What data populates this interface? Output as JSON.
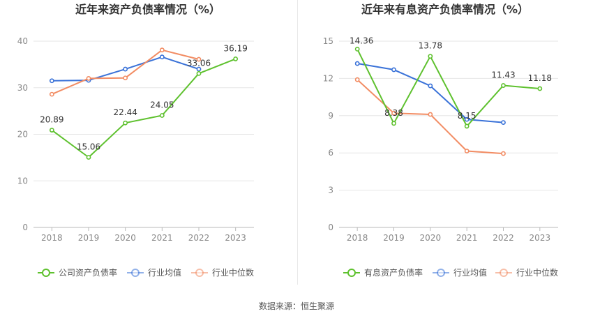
{
  "source_label": "数据来源：恒生聚源",
  "colors": {
    "company": "#5ec12e",
    "industry_avg": "#3a72d8",
    "industry_median": "#f28c63",
    "grid": "#e6e6e6",
    "axis_text": "#888888",
    "title": "#333333"
  },
  "chart_data": [
    {
      "type": "line",
      "title": "近年来资产负债率情况（%）",
      "categories": [
        "2018",
        "2019",
        "2020",
        "2021",
        "2022",
        "2023"
      ],
      "ylim": [
        0,
        40
      ],
      "yticks": [
        0,
        10,
        20,
        30,
        40
      ],
      "grid": true,
      "legend_position": "bottom",
      "series": [
        {
          "name": "公司资产负债率",
          "color_key": "company",
          "values": [
            20.89,
            15.06,
            22.44,
            24.05,
            33.06,
            36.19
          ],
          "labels": [
            "20.89",
            "15.06",
            "22.44",
            "24.05",
            "33.06",
            "36.19"
          ]
        },
        {
          "name": "行业均值",
          "color_key": "industry_avg",
          "values": [
            31.5,
            31.6,
            34.0,
            36.6,
            34.0,
            null
          ]
        },
        {
          "name": "行业中位数",
          "color_key": "industry_median",
          "values": [
            28.6,
            32.0,
            32.1,
            38.1,
            36.1,
            null
          ]
        }
      ]
    },
    {
      "type": "line",
      "title": "近年来有息资产负债率情况（%）",
      "categories": [
        "2018",
        "2019",
        "2020",
        "2021",
        "2022",
        "2023"
      ],
      "ylim": [
        0,
        15
      ],
      "yticks": [
        0,
        3,
        6,
        9,
        12,
        15
      ],
      "grid": true,
      "legend_position": "bottom",
      "series": [
        {
          "name": "有息资产负债率",
          "color_key": "company",
          "values": [
            14.36,
            8.38,
            13.78,
            8.15,
            11.43,
            11.18
          ],
          "labels": [
            "14.36",
            "8.38",
            "13.78",
            "8.15",
            "11.43",
            "11.18"
          ]
        },
        {
          "name": "行业均值",
          "color_key": "industry_avg",
          "values": [
            13.2,
            12.7,
            11.4,
            8.7,
            8.45,
            null
          ]
        },
        {
          "name": "行业中位数",
          "color_key": "industry_median",
          "values": [
            11.9,
            9.2,
            9.1,
            6.15,
            5.95,
            null
          ]
        }
      ]
    }
  ]
}
